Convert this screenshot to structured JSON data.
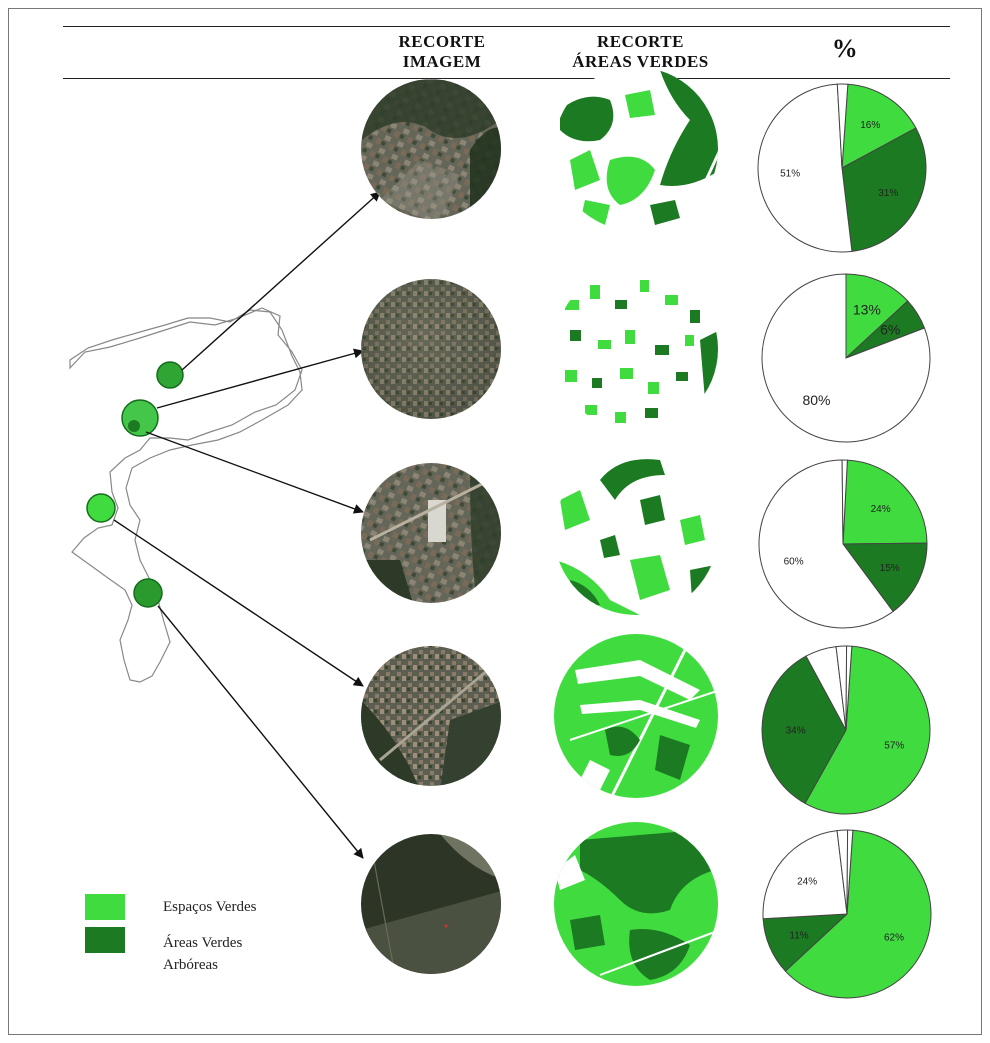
{
  "header": {
    "col_image": [
      "RECORTE",
      "IMAGEM"
    ],
    "col_green": [
      "RECORTE",
      "ÁREAS VERDES"
    ],
    "col_percent": "%"
  },
  "legend": {
    "items": [
      {
        "label": "Espaços Verdes",
        "color": "#3fdb3f"
      },
      {
        "label": "Áreas Verdes",
        "label2": "Arbóreas",
        "color": "#1c7a22"
      }
    ]
  },
  "colors": {
    "espacos_verdes": "#3fdb3f",
    "areas_arboreas": "#1c7a22",
    "unlabeled": "#ffffff",
    "outline": "#444444"
  },
  "chart_data": [
    {
      "type": "pie",
      "categories": [
        "Espaços Verdes",
        "Áreas Verdes Arbóreas",
        "",
        ""
      ],
      "values": [
        16,
        31,
        51,
        2
      ],
      "labels": [
        "16%",
        "31%",
        "51%",
        ""
      ]
    },
    {
      "type": "pie",
      "categories": [
        "Espaços Verdes",
        "Áreas Verdes Arbóreas",
        ""
      ],
      "values": [
        13,
        6,
        80
      ],
      "labels": [
        "13%",
        "6%",
        "80%"
      ]
    },
    {
      "type": "pie",
      "categories": [
        "Espaços Verdes",
        "Áreas Verdes Arbóreas",
        "",
        ""
      ],
      "values": [
        24,
        15,
        60,
        1
      ],
      "labels": [
        "24%",
        "15%",
        "60%",
        ""
      ]
    },
    {
      "type": "pie",
      "categories": [
        "Espaços Verdes",
        "Áreas Verdes Arbóreas",
        "",
        "",
        ""
      ],
      "values": [
        57,
        34,
        6,
        2,
        1
      ],
      "labels": [
        "57%",
        "34%",
        "",
        "",
        ""
      ]
    },
    {
      "type": "pie",
      "categories": [
        "Espaços Verdes",
        "Áreas Verdes Arbóreas",
        "",
        "",
        ""
      ],
      "values": [
        62,
        11,
        24,
        2,
        1
      ],
      "labels": [
        "62%",
        "11%",
        "24%",
        "",
        ""
      ]
    }
  ]
}
